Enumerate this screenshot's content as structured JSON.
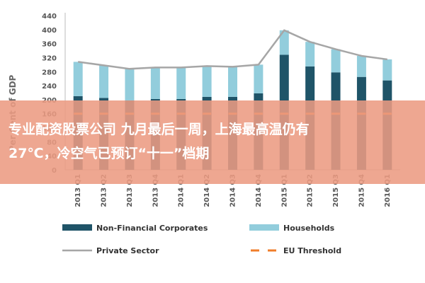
{
  "chart_data": {
    "type": "bar",
    "stacked": true,
    "categories": [
      "2013 Q1",
      "2013 Q2",
      "2013 Q3",
      "2013 Q4",
      "2014 Q1",
      "2014 Q2",
      "2014 Q3",
      "2014 Q4",
      "2015 Q1",
      "2015 Q2",
      "2015 Q3",
      "2015 Q4",
      "2016 Q1"
    ],
    "series": [
      {
        "name": "Non-Financial Corporates",
        "type": "bar",
        "color": "#1f5468",
        "values": [
          210,
          205,
          198,
          202,
          202,
          208,
          208,
          218,
          328,
          295,
          278,
          265,
          255
        ]
      },
      {
        "name": "Households",
        "type": "bar",
        "color": "#92cddc",
        "values": [
          98,
          93,
          90,
          90,
          90,
          88,
          86,
          82,
          70,
          70,
          66,
          60,
          60
        ]
      },
      {
        "name": "Private Sector",
        "type": "line",
        "color": "#a6a6a6",
        "values": [
          308,
          298,
          288,
          292,
          292,
          296,
          294,
          300,
          398,
          365,
          344,
          325,
          315
        ]
      },
      {
        "name": "EU Threshold",
        "type": "line",
        "style": "dashed",
        "color": "#f07d2a",
        "values": [
          160,
          160,
          160,
          160,
          160,
          160,
          160,
          160,
          160,
          160,
          160,
          160,
          160
        ]
      }
    ],
    "ylabel": "Per Cent of GDP",
    "ylim": [
      0,
      440
    ],
    "yticks": [
      0,
      40,
      80,
      120,
      160,
      200,
      240,
      280,
      320,
      360,
      400,
      440
    ],
    "grid": false,
    "legend_position": "bottom"
  },
  "overlay": {
    "line1": "专业配资股票公司 九月最后一周，上海最高温仍有",
    "line2": "27℃，冷空气已预订“十一”档期"
  }
}
